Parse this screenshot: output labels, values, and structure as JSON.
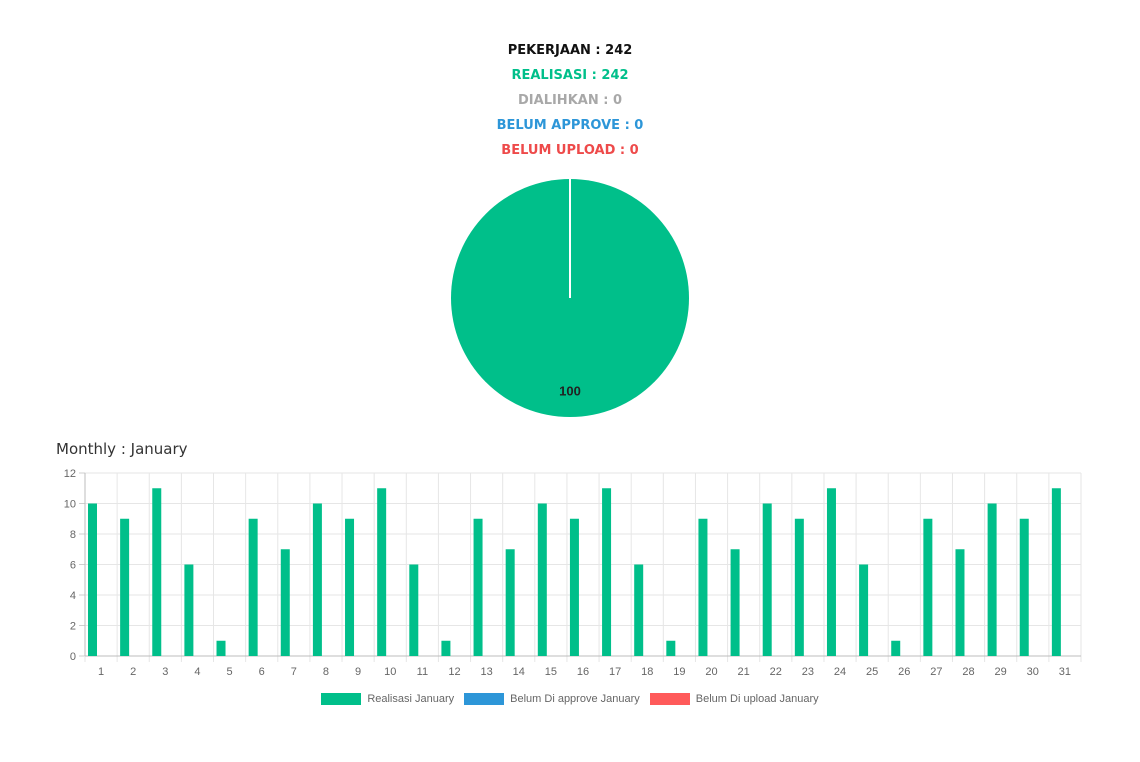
{
  "summary": {
    "pekerjaan": "PEKERJAAN : 242",
    "realisasi": "REALISASI : 242",
    "dialihkan": "DIALIHKAN : 0",
    "belum_approve": "BELUM APPROVE : 0",
    "belum_upload": "BELUM UPLOAD : 0"
  },
  "colors": {
    "pekerjaan": "#111111",
    "realisasi": "#00bf8a",
    "dialihkan": "#a8a8a8",
    "belum_approve": "#2d96d8",
    "belum_upload": "#ee4a4a"
  },
  "monthly_title": "Monthly : January",
  "chart_data": [
    {
      "type": "pie",
      "slices": [
        {
          "value": 100,
          "label": "100",
          "color": "#00bf8a"
        }
      ]
    },
    {
      "type": "bar",
      "categories": [
        "1",
        "2",
        "3",
        "4",
        "5",
        "6",
        "7",
        "8",
        "9",
        "10",
        "11",
        "12",
        "13",
        "14",
        "15",
        "16",
        "17",
        "18",
        "19",
        "20",
        "21",
        "22",
        "23",
        "24",
        "25",
        "26",
        "27",
        "28",
        "29",
        "30",
        "31"
      ],
      "series": [
        {
          "name": "Realisasi January",
          "color": "#00bf8a",
          "values": [
            10,
            9,
            11,
            6,
            1,
            9,
            7,
            10,
            9,
            11,
            6,
            1,
            9,
            7,
            10,
            9,
            11,
            6,
            1,
            9,
            7,
            10,
            9,
            11,
            6,
            1,
            9,
            7,
            10,
            9,
            11
          ]
        },
        {
          "name": "Belum Di approve January",
          "color": "#2d96d8",
          "values": [
            0,
            0,
            0,
            0,
            0,
            0,
            0,
            0,
            0,
            0,
            0,
            0,
            0,
            0,
            0,
            0,
            0,
            0,
            0,
            0,
            0,
            0,
            0,
            0,
            0,
            0,
            0,
            0,
            0,
            0,
            0
          ]
        },
        {
          "name": "Belum Di upload January",
          "color": "#ff5a5a",
          "values": [
            0,
            0,
            0,
            0,
            0,
            0,
            0,
            0,
            0,
            0,
            0,
            0,
            0,
            0,
            0,
            0,
            0,
            0,
            0,
            0,
            0,
            0,
            0,
            0,
            0,
            0,
            0,
            0,
            0,
            0,
            0
          ]
        }
      ],
      "ylim": [
        0,
        12
      ],
      "yticks": [
        0,
        2,
        4,
        6,
        8,
        10,
        12
      ],
      "grid": true,
      "legend": "bottom"
    }
  ]
}
